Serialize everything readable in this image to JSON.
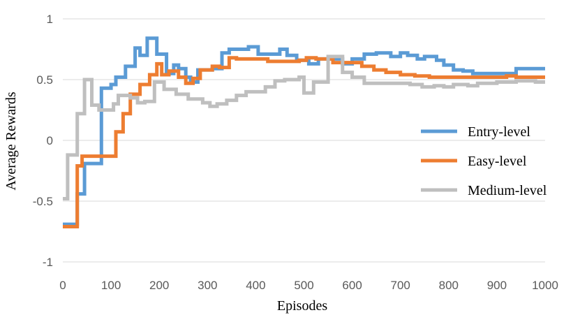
{
  "chart_data": {
    "type": "line",
    "title": "",
    "xlabel": "Episodes",
    "ylabel": "Average Rewards",
    "xlim": [
      0,
      1000
    ],
    "ylim": [
      -1,
      1
    ],
    "x_ticks": [
      0,
      100,
      200,
      300,
      400,
      500,
      600,
      700,
      800,
      900,
      1000
    ],
    "y_ticks": [
      {
        "value": 1,
        "label": "1"
      },
      {
        "value": 0.5,
        "label": "0.5"
      },
      {
        "value": 0,
        "label": "0"
      },
      {
        "value": -0.5,
        "label": "-0.5"
      },
      {
        "value": -1,
        "label": "-1"
      }
    ],
    "grid": "horizontal",
    "legend_position": "right",
    "series": [
      {
        "name": "Entry-level",
        "color": "#5b9bd5",
        "step": true,
        "points": [
          [
            0,
            -0.69
          ],
          [
            30,
            -0.44
          ],
          [
            45,
            -0.19
          ],
          [
            80,
            0.43
          ],
          [
            100,
            0.46
          ],
          [
            110,
            0.52
          ],
          [
            125,
            0.52
          ],
          [
            130,
            0.61
          ],
          [
            140,
            0.61
          ],
          [
            150,
            0.76
          ],
          [
            160,
            0.7
          ],
          [
            175,
            0.84
          ],
          [
            195,
            0.71
          ],
          [
            215,
            0.55
          ],
          [
            230,
            0.62
          ],
          [
            240,
            0.59
          ],
          [
            255,
            0.52
          ],
          [
            265,
            0.48
          ],
          [
            280,
            0.58
          ],
          [
            310,
            0.59
          ],
          [
            330,
            0.72
          ],
          [
            345,
            0.75
          ],
          [
            385,
            0.77
          ],
          [
            405,
            0.71
          ],
          [
            450,
            0.75
          ],
          [
            465,
            0.7
          ],
          [
            485,
            0.66
          ],
          [
            510,
            0.63
          ],
          [
            530,
            0.67
          ],
          [
            560,
            0.67
          ],
          [
            580,
            0.63
          ],
          [
            600,
            0.67
          ],
          [
            625,
            0.71
          ],
          [
            650,
            0.72
          ],
          [
            680,
            0.69
          ],
          [
            700,
            0.72
          ],
          [
            715,
            0.7
          ],
          [
            735,
            0.67
          ],
          [
            750,
            0.69
          ],
          [
            775,
            0.66
          ],
          [
            790,
            0.62
          ],
          [
            810,
            0.58
          ],
          [
            830,
            0.57
          ],
          [
            850,
            0.55
          ],
          [
            900,
            0.55
          ],
          [
            940,
            0.59
          ],
          [
            1000,
            0.59
          ]
        ]
      },
      {
        "name": "Easy-level",
        "color": "#ed7d31",
        "step": true,
        "points": [
          [
            0,
            -0.71
          ],
          [
            30,
            -0.21
          ],
          [
            40,
            -0.13
          ],
          [
            80,
            -0.13
          ],
          [
            110,
            0.07
          ],
          [
            125,
            0.22
          ],
          [
            140,
            0.38
          ],
          [
            160,
            0.46
          ],
          [
            180,
            0.54
          ],
          [
            195,
            0.63
          ],
          [
            205,
            0.54
          ],
          [
            220,
            0.57
          ],
          [
            240,
            0.52
          ],
          [
            255,
            0.47
          ],
          [
            270,
            0.51
          ],
          [
            285,
            0.58
          ],
          [
            310,
            0.61
          ],
          [
            325,
            0.6
          ],
          [
            345,
            0.68
          ],
          [
            360,
            0.67
          ],
          [
            400,
            0.67
          ],
          [
            425,
            0.65
          ],
          [
            490,
            0.66
          ],
          [
            505,
            0.68
          ],
          [
            525,
            0.67
          ],
          [
            560,
            0.64
          ],
          [
            600,
            0.64
          ],
          [
            620,
            0.61
          ],
          [
            645,
            0.58
          ],
          [
            670,
            0.56
          ],
          [
            700,
            0.54
          ],
          [
            730,
            0.53
          ],
          [
            760,
            0.52
          ],
          [
            900,
            0.52
          ],
          [
            920,
            0.53
          ],
          [
            940,
            0.52
          ],
          [
            1000,
            0.52
          ]
        ]
      },
      {
        "name": "Medium-level",
        "color": "#bfbfbf",
        "step": true,
        "points": [
          [
            0,
            -0.48
          ],
          [
            10,
            -0.12
          ],
          [
            30,
            0.22
          ],
          [
            45,
            0.5
          ],
          [
            60,
            0.29
          ],
          [
            75,
            0.25
          ],
          [
            105,
            0.3
          ],
          [
            115,
            0.37
          ],
          [
            140,
            0.35
          ],
          [
            155,
            0.31
          ],
          [
            170,
            0.32
          ],
          [
            190,
            0.48
          ],
          [
            210,
            0.42
          ],
          [
            235,
            0.38
          ],
          [
            260,
            0.34
          ],
          [
            290,
            0.31
          ],
          [
            305,
            0.28
          ],
          [
            320,
            0.3
          ],
          [
            340,
            0.33
          ],
          [
            360,
            0.37
          ],
          [
            380,
            0.4
          ],
          [
            420,
            0.44
          ],
          [
            440,
            0.49
          ],
          [
            460,
            0.5
          ],
          [
            490,
            0.52
          ],
          [
            500,
            0.39
          ],
          [
            520,
            0.48
          ],
          [
            550,
            0.69
          ],
          [
            580,
            0.56
          ],
          [
            600,
            0.52
          ],
          [
            625,
            0.47
          ],
          [
            680,
            0.47
          ],
          [
            700,
            0.47
          ],
          [
            720,
            0.46
          ],
          [
            745,
            0.44
          ],
          [
            770,
            0.45
          ],
          [
            790,
            0.44
          ],
          [
            810,
            0.46
          ],
          [
            840,
            0.45
          ],
          [
            860,
            0.47
          ],
          [
            900,
            0.48
          ],
          [
            940,
            0.49
          ],
          [
            980,
            0.48
          ],
          [
            1000,
            0.48
          ]
        ]
      }
    ]
  }
}
